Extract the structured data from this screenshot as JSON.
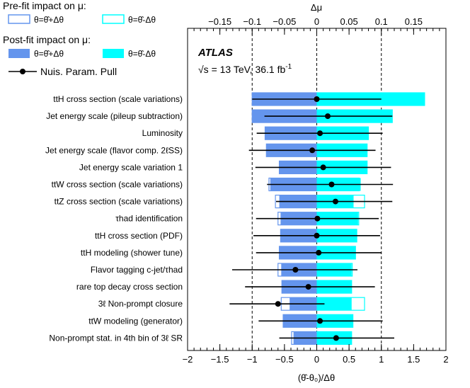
{
  "chart_data": {
    "type": "ranking",
    "title": "ATLAS",
    "subtitle": "√s = 13 TeV, 36.1 fb⁻¹",
    "energy_label": "√s = 13 TeV, 36.1 fb",
    "lumi_exponent": "-1",
    "xlabel": "(θ̂-θ₀)/Δθ",
    "top_xlabel": "Δμ",
    "xlim": [
      -2,
      2
    ],
    "xticks": [
      "−2",
      "−1.5",
      "−1",
      "−0.5",
      "0",
      "0.5",
      "1",
      "1.5",
      "2"
    ],
    "xtick_values": [
      -2,
      -1.5,
      -1,
      -0.5,
      0,
      0.5,
      1,
      1.5,
      2
    ],
    "top_xlim": [
      -0.2,
      0.2
    ],
    "top_xticks": [
      "−0.15",
      "−0.1",
      "−0.05",
      "0",
      "0.05",
      "0.1",
      "0.15"
    ],
    "top_xtick_values": [
      -0.15,
      -0.1,
      -0.05,
      0,
      0.05,
      0.1,
      0.15
    ],
    "legend": {
      "prefit_title": "Pre-fit impact on μ:",
      "postfit_title": "Post-fit impact on μ:",
      "up_label": "θ=θ̂+Δθ",
      "down_label": "θ=θ̂-Δθ",
      "pull_label": "Nuis. Param. Pull"
    },
    "colors": {
      "up": "#6495ed",
      "down": "#00ffff",
      "pull": "#000000"
    },
    "nuisance_parameters": [
      {
        "name": "ttH cross section (scale variations)",
        "postfit_up": -0.1,
        "postfit_down": 0.167,
        "prefit_up": -0.1,
        "prefit_down": 0.167,
        "pull": 0.0,
        "err_lo": 1.0,
        "err_hi": 1.0
      },
      {
        "name": "Jet energy scale (pileup subtraction)",
        "postfit_up": -0.1,
        "postfit_down": 0.117,
        "prefit_up": -0.1,
        "prefit_down": 0.117,
        "pull": 0.17,
        "err_lo": 0.98,
        "err_hi": 1.0
      },
      {
        "name": "Luminosity",
        "postfit_up": -0.08,
        "postfit_down": 0.08,
        "prefit_up": -0.08,
        "prefit_down": 0.08,
        "pull": 0.05,
        "err_lo": 0.98,
        "err_hi": 0.97
      },
      {
        "name": "Jet energy scale (flavor comp. 2ℓSS)",
        "postfit_up": -0.078,
        "postfit_down": 0.078,
        "prefit_up": -0.078,
        "prefit_down": 0.078,
        "pull": -0.07,
        "err_lo": 0.98,
        "err_hi": 0.98
      },
      {
        "name": "Jet energy scale variation 1",
        "postfit_up": -0.058,
        "postfit_down": 0.078,
        "prefit_up": -0.058,
        "prefit_down": 0.078,
        "pull": 0.1,
        "err_lo": 1.05,
        "err_hi": 1.05
      },
      {
        "name": "ttW cross section (scale variations)",
        "postfit_up": -0.072,
        "postfit_down": 0.068,
        "prefit_up": -0.074,
        "prefit_down": 0.066,
        "pull": 0.23,
        "err_lo": 1.0,
        "err_hi": 0.95
      },
      {
        "name": "ttZ cross section (scale variations)",
        "postfit_up": -0.058,
        "postfit_down": 0.057,
        "prefit_up": -0.064,
        "prefit_down": 0.074,
        "pull": 0.29,
        "err_lo": 0.92,
        "err_hi": 0.88
      },
      {
        "name": "τhad identification",
        "postfit_up": -0.056,
        "postfit_down": 0.064,
        "prefit_up": -0.06,
        "prefit_down": 0.065,
        "pull": 0.01,
        "err_lo": 0.95,
        "err_hi": 0.95
      },
      {
        "name": "ttH cross section (PDF)",
        "postfit_up": -0.056,
        "postfit_down": 0.062,
        "prefit_up": -0.056,
        "prefit_down": 0.062,
        "pull": 0.0,
        "err_lo": 0.98,
        "err_hi": 0.98
      },
      {
        "name": "ttH modeling (shower tune)",
        "postfit_up": -0.058,
        "postfit_down": 0.06,
        "prefit_up": -0.058,
        "prefit_down": 0.06,
        "pull": 0.03,
        "err_lo": 0.97,
        "err_hi": 0.97
      },
      {
        "name": "Flavor tagging c-jet/τhad",
        "postfit_up": -0.055,
        "postfit_down": 0.054,
        "prefit_up": -0.06,
        "prefit_down": 0.055,
        "pull": -0.33,
        "err_lo": 0.98,
        "err_hi": 0.96
      },
      {
        "name": "rare top decay cross section",
        "postfit_up": -0.054,
        "postfit_down": 0.054,
        "prefit_up": -0.054,
        "prefit_down": 0.054,
        "pull": -0.13,
        "err_lo": 0.98,
        "err_hi": 1.03
      },
      {
        "name": "3ℓ Non-prompt closure",
        "postfit_up": -0.042,
        "postfit_down": 0.054,
        "prefit_up": -0.055,
        "prefit_down": 0.074,
        "pull": -0.6,
        "err_lo": 0.75,
        "err_hi": 0.72
      },
      {
        "name": "ttW modeling (generator)",
        "postfit_up": -0.052,
        "postfit_down": 0.056,
        "prefit_up": -0.052,
        "prefit_down": 0.056,
        "pull": 0.05,
        "err_lo": 0.95,
        "err_hi": 0.97
      },
      {
        "name": "Non-prompt stat. in 4th bin of 3ℓ SR",
        "postfit_up": -0.036,
        "postfit_down": 0.054,
        "prefit_up": -0.039,
        "prefit_down": 0.054,
        "pull": 0.3,
        "err_lo": 0.88,
        "err_hi": 0.9
      }
    ]
  }
}
